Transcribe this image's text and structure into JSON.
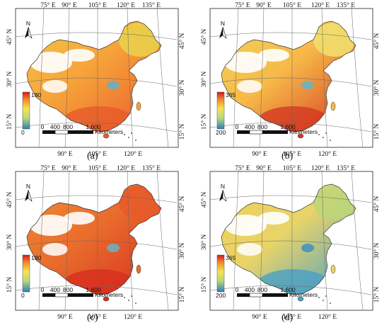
{
  "scale_bar": {
    "ticks": [
      "0",
      "400",
      "800",
      "1,600"
    ],
    "unit": "Kilometers"
  },
  "graticule": {
    "top": [
      "75° E",
      "90° E",
      "105° E",
      "120° E",
      "135° E"
    ],
    "bottom": [
      "90° E",
      "105° E",
      "120° E"
    ],
    "left": [
      "45° N",
      "30° N",
      "15° N"
    ],
    "right": [
      "45° N",
      "30° N",
      "15° N"
    ]
  },
  "north_arrow": {
    "label": "N"
  },
  "panels": [
    {
      "id": "a",
      "caption": "(a)",
      "legend_max": "180",
      "legend_min": "0",
      "colors": {
        "west": "#f4c84a",
        "east": "#f6a23a",
        "south": "#e85a2a",
        "northeast": "#e9d24e",
        "lakes": "#5fb0c9"
      }
    },
    {
      "id": "b",
      "caption": "(b)",
      "legend_max": "365",
      "legend_min": "200",
      "colors": {
        "west": "#f2d45a",
        "east": "#f7b948",
        "south": "#d33a22",
        "northeast": "#f0e070",
        "lakes": "#66b4c8"
      }
    },
    {
      "id": "c",
      "caption": "(c)",
      "legend_max": "180",
      "legend_min": "0",
      "colors": {
        "west": "#f08a33",
        "east": "#e96d2d",
        "south": "#d72e1e",
        "northeast": "#e85a2b",
        "lakes": "#6bb2c6"
      }
    },
    {
      "id": "d",
      "caption": "(d)",
      "legend_max": "365",
      "legend_min": "200",
      "colors": {
        "west": "#eecf57",
        "east": "#e9d468",
        "south": "#4aa0c4",
        "northeast": "#bcd67a",
        "lakes": "#3e8fc0"
      }
    }
  ]
}
